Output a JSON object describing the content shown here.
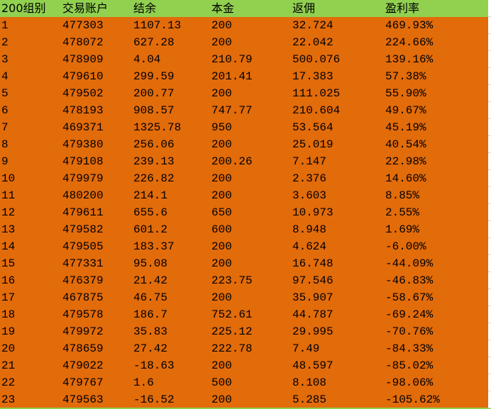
{
  "colors": {
    "header_bg": "#92d050",
    "body_bg": "#e26b0a"
  },
  "headers": [
    "200组别",
    "交易账户",
    "结余",
    "本金",
    "返佣",
    "盈利率"
  ],
  "rows": [
    [
      "1",
      "477303",
      "1107.13",
      "200",
      "32.724",
      "469.93%"
    ],
    [
      "2",
      "478072",
      "627.28",
      "200",
      "22.042",
      "224.66%"
    ],
    [
      "3",
      "478909",
      "4.04",
      "210.79",
      "500.076",
      "139.16%"
    ],
    [
      "4",
      "479610",
      "299.59",
      "201.41",
      "17.383",
      "57.38%"
    ],
    [
      "5",
      "479502",
      "200.77",
      "200",
      "111.025",
      "55.90%"
    ],
    [
      "6",
      "478193",
      "908.57",
      "747.77",
      "210.604",
      "49.67%"
    ],
    [
      "7",
      "469371",
      "1325.78",
      "950",
      "53.564",
      "45.19%"
    ],
    [
      "8",
      "479380",
      "256.06",
      "200",
      "25.019",
      "40.54%"
    ],
    [
      "9",
      "479108",
      "239.13",
      "200.26",
      "7.147",
      "22.98%"
    ],
    [
      "10",
      "479979",
      "226.82",
      "200",
      "2.376",
      "14.60%"
    ],
    [
      "11",
      "480200",
      "214.1",
      "200",
      "3.603",
      "8.85%"
    ],
    [
      "12",
      "479611",
      "655.6",
      "650",
      "10.973",
      "2.55%"
    ],
    [
      "13",
      "479582",
      "601.2",
      "600",
      "8.948",
      "1.69%"
    ],
    [
      "14",
      "479505",
      "183.37",
      "200",
      "4.624",
      "-6.00%"
    ],
    [
      "15",
      "477331",
      "95.08",
      "200",
      "16.748",
      "-44.09%"
    ],
    [
      "16",
      "476379",
      "21.42",
      "223.75",
      "97.546",
      "-46.83%"
    ],
    [
      "17",
      "467875",
      "46.75",
      "200",
      "35.907",
      "-58.67%"
    ],
    [
      "18",
      "479578",
      "186.7",
      "752.61",
      "44.787",
      "-69.24%"
    ],
    [
      "19",
      "479972",
      "35.83",
      "225.12",
      "29.995",
      "-70.76%"
    ],
    [
      "20",
      "478659",
      "27.42",
      "222.78",
      "7.49",
      "-84.33%"
    ],
    [
      "21",
      "479022",
      "-18.63",
      "200",
      "48.597",
      "-85.02%"
    ],
    [
      "22",
      "479767",
      "1.6",
      "500",
      "8.108",
      "-98.06%"
    ],
    [
      "23",
      "479563",
      "-16.52",
      "200",
      "5.285",
      "-105.62%"
    ]
  ]
}
